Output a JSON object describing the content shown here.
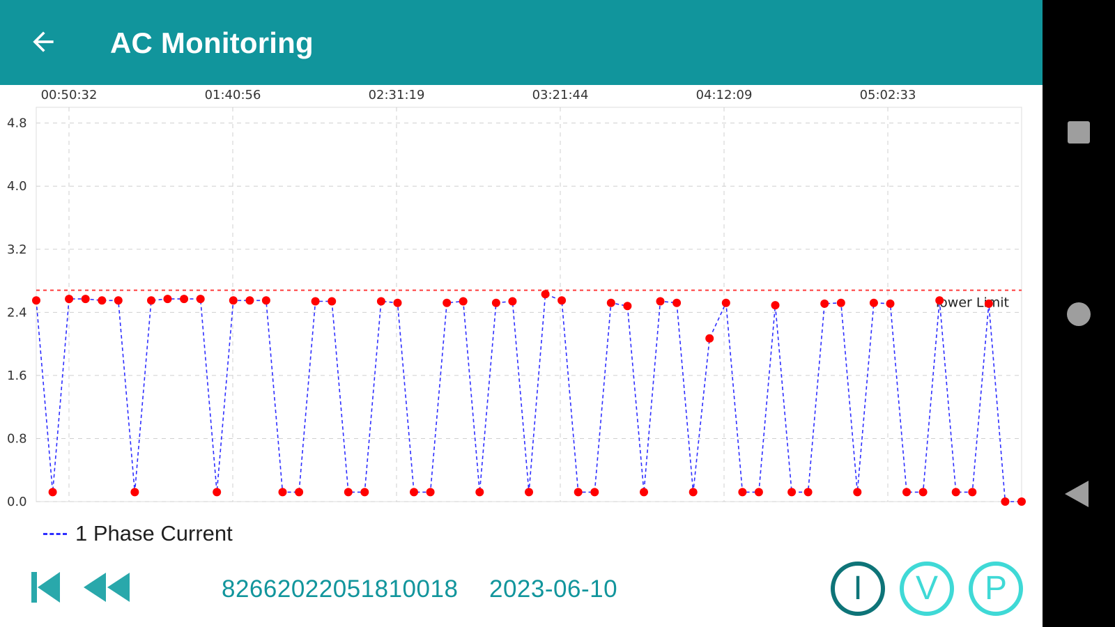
{
  "app_bar": {
    "title": "AC Monitoring",
    "back_icon": "arrow-left-icon",
    "background": "#11959c"
  },
  "chart_data": {
    "type": "line",
    "x_tick_labels": [
      "00:50:32",
      "01:40:56",
      "02:31:19",
      "03:21:44",
      "04:12:09",
      "05:02:33"
    ],
    "y_ticks": [
      0.0,
      0.8,
      1.6,
      2.4,
      3.2,
      4.0,
      4.8
    ],
    "y_tick_labels": [
      "0.0",
      "0.8",
      "1.6",
      "2.4",
      "3.2",
      "4.0",
      "4.8"
    ],
    "ylim": [
      0,
      5.0
    ],
    "grid": true,
    "limit_line": {
      "label": "lower Limit",
      "value": 2.68,
      "color": "#ff3b3b"
    },
    "series": [
      {
        "name": "1 Phase Current",
        "line_color": "#2e2eff",
        "marker_color": "#ff0000",
        "line_style": "dashed",
        "values": [
          2.55,
          0.12,
          2.57,
          2.57,
          2.55,
          2.55,
          0.12,
          2.55,
          2.57,
          2.57,
          2.57,
          0.12,
          2.55,
          2.55,
          2.55,
          0.12,
          0.12,
          2.54,
          2.54,
          0.12,
          0.12,
          2.54,
          2.52,
          0.12,
          0.12,
          2.52,
          2.54,
          0.12,
          2.52,
          2.54,
          0.12,
          2.63,
          2.55,
          0.12,
          0.12,
          2.52,
          2.48,
          0.12,
          2.54,
          2.52,
          0.12,
          2.07,
          2.52,
          0.12,
          0.12,
          2.49,
          0.12,
          0.12,
          2.51,
          2.52,
          0.12,
          2.52,
          2.51,
          0.12,
          0.12,
          2.55,
          0.12,
          0.12,
          2.51,
          0.0,
          0.0
        ]
      }
    ]
  },
  "legend": {
    "label": "1 Phase Current"
  },
  "controls": {
    "first_icon": "skip-to-first-icon",
    "rewind_icon": "rewind-icon",
    "device_id": "8266202205181001​8",
    "date": "2023-06-10",
    "modes": [
      {
        "label": "I",
        "active": true
      },
      {
        "label": "V",
        "active": false
      },
      {
        "label": "P",
        "active": false
      }
    ]
  },
  "nav_bar": {
    "recents_icon": "square-recents-icon",
    "home_icon": "circle-home-icon",
    "back_icon": "triangle-back-icon"
  }
}
